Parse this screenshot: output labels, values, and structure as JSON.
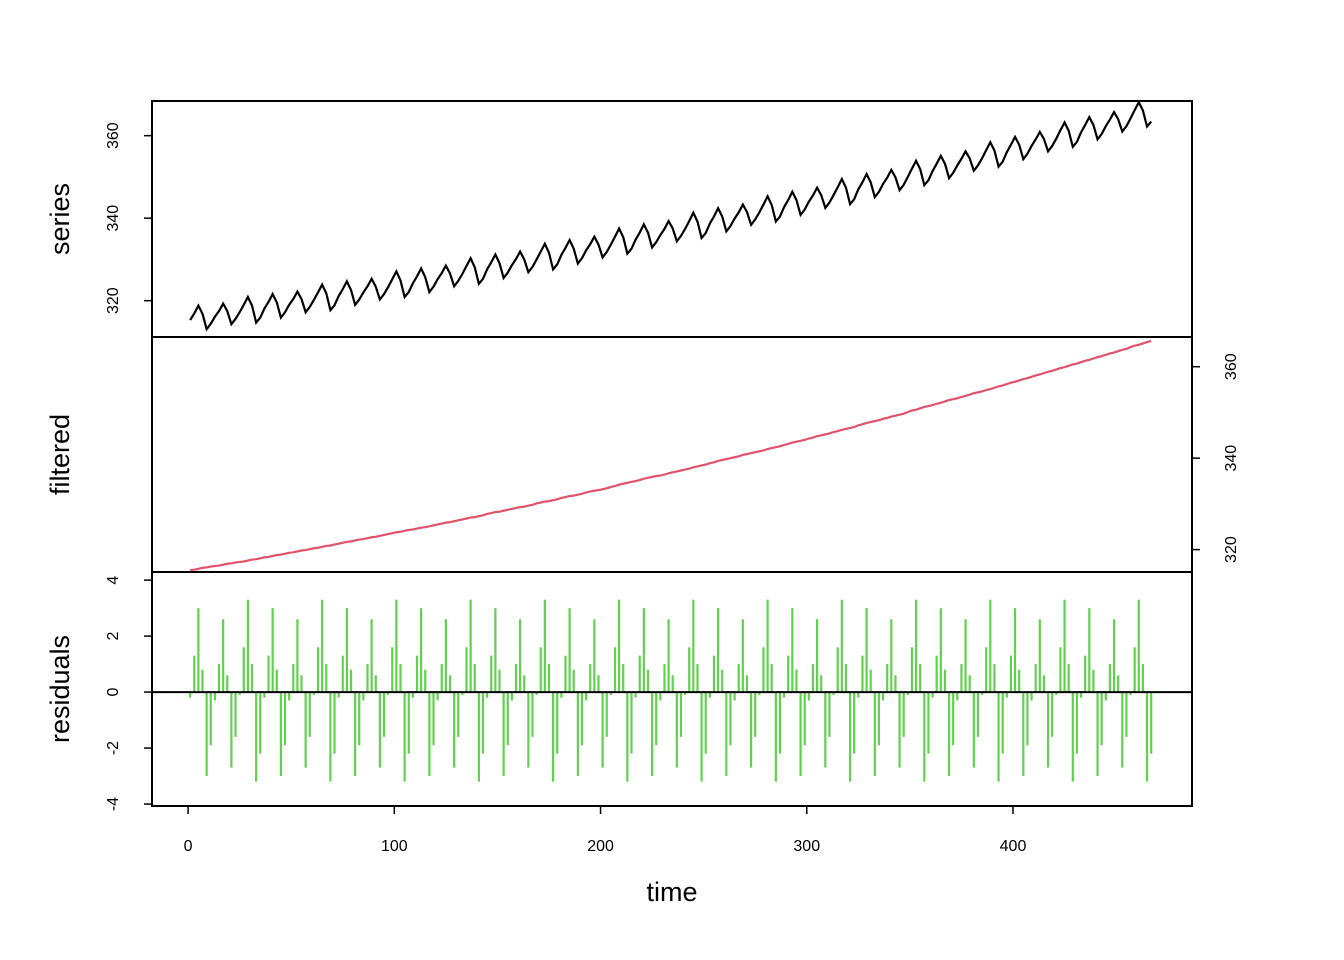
{
  "chart_data": [
    {
      "type": "line",
      "ylabel": "series",
      "color": "#000000",
      "yaxis": "left",
      "ylim": [
        311.2,
        368.4
      ],
      "yticks": [
        320,
        340,
        360
      ],
      "values": [
        315.3,
        316.9,
        318.8,
        316.8,
        313.1,
        314.4,
        316.1,
        317.5,
        319.3,
        317.5,
        314.3,
        315.6,
        317.2,
        319.0,
        320.9,
        318.8,
        314.7,
        315.9,
        318.1,
        319.7,
        321.6,
        319.6,
        315.9,
        317.2,
        319.0,
        320.4,
        322.2,
        320.4,
        317.2,
        318.5,
        320.2,
        322.0,
        323.9,
        321.8,
        317.7,
        318.9,
        321.1,
        322.8,
        324.7,
        322.6,
        319.0,
        320.3,
        322.0,
        323.5,
        325.3,
        323.4,
        320.3,
        321.6,
        323.3,
        325.2,
        327.1,
        324.9,
        320.9,
        322.1,
        324.2,
        325.9,
        327.8,
        325.7,
        322.1,
        323.4,
        325.2,
        326.7,
        328.5,
        326.6,
        323.5,
        324.8,
        326.5,
        328.4,
        330.3,
        328.1,
        324.1,
        325.3,
        327.6,
        329.3,
        331.2,
        329.1,
        325.5,
        326.8,
        328.6,
        330.1,
        331.9,
        330.0,
        326.9,
        328.2,
        330.0,
        331.9,
        333.8,
        331.6,
        327.6,
        328.8,
        331.1,
        332.8,
        334.7,
        332.6,
        329.0,
        330.3,
        332.2,
        333.7,
        335.5,
        333.6,
        330.5,
        331.8,
        333.6,
        335.5,
        337.5,
        335.4,
        331.4,
        332.6,
        334.8,
        336.5,
        338.5,
        336.5,
        332.9,
        334.2,
        335.9,
        337.4,
        339.3,
        337.5,
        334.4,
        335.7,
        337.4,
        339.3,
        341.3,
        339.2,
        335.2,
        336.4,
        338.7,
        340.4,
        342.4,
        340.4,
        336.8,
        338.1,
        339.9,
        341.4,
        343.3,
        341.5,
        338.4,
        339.7,
        341.4,
        343.3,
        345.3,
        343.2,
        339.2,
        340.4,
        342.7,
        344.4,
        346.4,
        344.4,
        340.8,
        342.1,
        344.0,
        345.5,
        347.4,
        345.6,
        342.5,
        343.8,
        345.6,
        347.5,
        349.5,
        347.4,
        343.4,
        344.6,
        347.0,
        348.7,
        350.7,
        348.7,
        345.1,
        346.4,
        348.3,
        349.8,
        351.7,
        349.9,
        346.8,
        348.1,
        350.0,
        352.0,
        353.9,
        351.9,
        348.0,
        349.2,
        351.4,
        353.2,
        355.1,
        353.2,
        349.7,
        351.0,
        352.8,
        354.4,
        356.2,
        354.5,
        351.5,
        352.8,
        354.5,
        356.5,
        358.4,
        356.4,
        352.5,
        353.7,
        356.0,
        357.8,
        359.7,
        357.8,
        354.3,
        355.6,
        357.5,
        359.1,
        360.9,
        359.2,
        356.2,
        357.5,
        359.3,
        361.3,
        363.2,
        361.2,
        357.3,
        358.5,
        360.8,
        362.6,
        364.5,
        362.6,
        359.1,
        360.4,
        362.3,
        363.9,
        365.7,
        364.0,
        361.0,
        362.3,
        364.2,
        366.2,
        368.1,
        366.1,
        362.2,
        363.4
      ]
    },
    {
      "type": "line",
      "ylabel": "filtered",
      "color": "#df536b",
      "yaxis": "right",
      "ylim": [
        315.1,
        366.5
      ],
      "yticks": [
        320,
        340,
        360
      ],
      "values": [
        315.5,
        315.6,
        315.8,
        316.0,
        316.1,
        316.3,
        316.4,
        316.5,
        316.7,
        316.9,
        317.0,
        317.2,
        317.3,
        317.4,
        317.6,
        317.8,
        317.9,
        318.1,
        318.3,
        318.4,
        318.6,
        318.8,
        318.9,
        319.1,
        319.3,
        319.4,
        319.6,
        319.8,
        319.9,
        320.1,
        320.3,
        320.4,
        320.6,
        320.8,
        320.9,
        321.1,
        321.3,
        321.5,
        321.7,
        321.8,
        322.0,
        322.2,
        322.3,
        322.5,
        322.7,
        322.8,
        323.0,
        323.2,
        323.4,
        323.6,
        323.8,
        323.9,
        324.1,
        324.3,
        324.4,
        324.6,
        324.8,
        324.9,
        325.1,
        325.3,
        325.5,
        325.7,
        325.9,
        326.0,
        326.2,
        326.4,
        326.6,
        326.8,
        327.0,
        327.1,
        327.3,
        327.5,
        327.8,
        328.0,
        328.2,
        328.3,
        328.5,
        328.7,
        328.9,
        329.1,
        329.3,
        329.4,
        329.6,
        329.8,
        330.1,
        330.3,
        330.5,
        330.6,
        330.8,
        331.0,
        331.3,
        331.5,
        331.7,
        331.8,
        332.0,
        332.2,
        332.5,
        332.7,
        332.9,
        333.0,
        333.2,
        333.4,
        333.7,
        333.9,
        334.2,
        334.4,
        334.6,
        334.8,
        335.0,
        335.2,
        335.5,
        335.7,
        335.9,
        336.1,
        336.2,
        336.4,
        336.7,
        336.9,
        337.1,
        337.3,
        337.5,
        337.7,
        338.0,
        338.2,
        338.4,
        338.6,
        338.9,
        339.1,
        339.4,
        339.6,
        339.8,
        340.0,
        340.2,
        340.4,
        340.7,
        340.9,
        341.1,
        341.3,
        341.5,
        341.7,
        342.0,
        342.2,
        342.4,
        342.6,
        342.9,
        343.1,
        343.4,
        343.6,
        343.8,
        344.0,
        344.3,
        344.5,
        344.8,
        345.0,
        345.2,
        345.4,
        345.7,
        345.9,
        346.2,
        346.4,
        346.6,
        346.8,
        347.2,
        347.4,
        347.7,
        347.9,
        348.1,
        348.3,
        348.6,
        348.8,
        349.1,
        349.3,
        349.5,
        349.7,
        350.1,
        350.4,
        350.6,
        350.9,
        351.2,
        351.4,
        351.6,
        351.9,
        352.1,
        352.4,
        352.7,
        352.9,
        353.1,
        353.4,
        353.6,
        353.9,
        354.2,
        354.4,
        354.6,
        354.9,
        355.1,
        355.4,
        355.7,
        355.9,
        356.2,
        356.5,
        356.7,
        357.0,
        357.3,
        357.5,
        357.8,
        358.1,
        358.3,
        358.6,
        358.9,
        359.1,
        359.4,
        359.7,
        359.9,
        360.2,
        360.5,
        360.7,
        361.0,
        361.3,
        361.5,
        361.8,
        362.1,
        362.3,
        362.6,
        362.9,
        363.1,
        363.4,
        363.7,
        363.9,
        364.3,
        364.6,
        364.8,
        365.1,
        365.4,
        365.6
      ]
    },
    {
      "type": "spike",
      "ylabel": "residuals",
      "color": "#61d04f",
      "yaxis": "left",
      "ylim": [
        -4.07,
        4.29
      ],
      "yticks": [
        -4,
        -2,
        0,
        2,
        4
      ],
      "reference_line": 0,
      "xlabel": "time",
      "xlim": [
        -17.5,
        486.8
      ],
      "xticks": [
        0,
        100,
        200,
        300,
        400
      ],
      "x": [
        1,
        3,
        5,
        7,
        9,
        11,
        13,
        15,
        17,
        19,
        21,
        23,
        25,
        27,
        29,
        31,
        33,
        35,
        37,
        39,
        41,
        43,
        45,
        47,
        49,
        51,
        53,
        55,
        57,
        59,
        61,
        63,
        65,
        67,
        69,
        71,
        73,
        75,
        77,
        79,
        81,
        83,
        85,
        87,
        89,
        91,
        93,
        95,
        97,
        99,
        101,
        103,
        105,
        107,
        109,
        111,
        113,
        115,
        117,
        119,
        121,
        123,
        125,
        127,
        129,
        131,
        133,
        135,
        137,
        139,
        141,
        143,
        145,
        147,
        149,
        151,
        153,
        155,
        157,
        159,
        161,
        163,
        165,
        167,
        169,
        171,
        173,
        175,
        177,
        179,
        181,
        183,
        185,
        187,
        189,
        191,
        193,
        195,
        197,
        199,
        201,
        203,
        205,
        207,
        209,
        211,
        213,
        215,
        217,
        219,
        221,
        223,
        225,
        227,
        229,
        231,
        233,
        235,
        237,
        239,
        241,
        243,
        245,
        247,
        249,
        251,
        253,
        255,
        257,
        259,
        261,
        263,
        265,
        267,
        269,
        271,
        273,
        275,
        277,
        279,
        281,
        283,
        285,
        287,
        289,
        291,
        293,
        295,
        297,
        299,
        301,
        303,
        305,
        307,
        309,
        311,
        313,
        315,
        317,
        319,
        321,
        323,
        325,
        327,
        329,
        331,
        333,
        335,
        337,
        339,
        341,
        343,
        345,
        347,
        349,
        351,
        353,
        355,
        357,
        359,
        361,
        363,
        365,
        367,
        369,
        371,
        373,
        375,
        377,
        379,
        381,
        383,
        385,
        387,
        389,
        391,
        393,
        395,
        397,
        399,
        401,
        403,
        405,
        407,
        409,
        411,
        413,
        415,
        417,
        419,
        421,
        423,
        425,
        427,
        429,
        431,
        433,
        435,
        437,
        439,
        441,
        443,
        445,
        447,
        449,
        451,
        453,
        455,
        457,
        459,
        461,
        463,
        465,
        467
      ],
      "values": [
        -0.2,
        1.3,
        3.0,
        0.8,
        -3.0,
        -1.9,
        -0.3,
        1.0,
        2.6,
        0.6,
        -2.7,
        -1.6,
        -0.1,
        1.6,
        3.3,
        1.0,
        -3.2,
        -2.2,
        -0.2,
        1.3,
        3.0,
        0.8,
        -3.0,
        -1.9,
        -0.3,
        1.0,
        2.6,
        0.6,
        -2.7,
        -1.6,
        -0.1,
        1.6,
        3.3,
        1.0,
        -3.2,
        -2.2,
        -0.2,
        1.3,
        3.0,
        0.8,
        -3.0,
        -1.9,
        -0.3,
        1.0,
        2.6,
        0.6,
        -2.7,
        -1.6,
        -0.1,
        1.6,
        3.3,
        1.0,
        -3.2,
        -2.2,
        -0.2,
        1.3,
        3.0,
        0.8,
        -3.0,
        -1.9,
        -0.3,
        1.0,
        2.6,
        0.6,
        -2.7,
        -1.6,
        -0.1,
        1.6,
        3.3,
        1.0,
        -3.2,
        -2.2,
        -0.2,
        1.3,
        3.0,
        0.8,
        -3.0,
        -1.9,
        -0.3,
        1.0,
        2.6,
        0.6,
        -2.7,
        -1.6,
        -0.1,
        1.6,
        3.3,
        1.0,
        -3.2,
        -2.2,
        -0.2,
        1.3,
        3.0,
        0.8,
        -3.0,
        -1.9,
        -0.3,
        1.0,
        2.6,
        0.6,
        -2.7,
        -1.6,
        -0.1,
        1.6,
        3.3,
        1.0,
        -3.2,
        -2.2,
        -0.2,
        1.3,
        3.0,
        0.8,
        -3.0,
        -1.9,
        -0.3,
        1.0,
        2.6,
        0.6,
        -2.7,
        -1.6,
        -0.1,
        1.6,
        3.3,
        1.0,
        -3.2,
        -2.2,
        -0.2,
        1.3,
        3.0,
        0.8,
        -3.0,
        -1.9,
        -0.3,
        1.0,
        2.6,
        0.6,
        -2.7,
        -1.6,
        -0.1,
        1.6,
        3.3,
        1.0,
        -3.2,
        -2.2,
        -0.2,
        1.3,
        3.0,
        0.8,
        -3.0,
        -1.9,
        -0.3,
        1.0,
        2.6,
        0.6,
        -2.7,
        -1.6,
        -0.1,
        1.6,
        3.3,
        1.0,
        -3.2,
        -2.2,
        -0.2,
        1.3,
        3.0,
        0.8,
        -3.0,
        -1.9,
        -0.3,
        1.0,
        2.6,
        0.6,
        -2.7,
        -1.6,
        -0.1,
        1.6,
        3.3,
        1.0,
        -3.2,
        -2.2,
        -0.2,
        1.3,
        3.0,
        0.8,
        -3.0,
        -1.9,
        -0.3,
        1.0,
        2.6,
        0.6,
        -2.7,
        -1.6,
        -0.1,
        1.6,
        3.3,
        1.0,
        -3.2,
        -2.2,
        -0.2,
        1.3,
        3.0,
        0.8,
        -3.0,
        -1.9,
        -0.3,
        1.0,
        2.6,
        0.6,
        -2.7,
        -1.6,
        -0.1,
        1.6,
        3.3,
        1.0,
        -3.2,
        -2.2,
        -0.2,
        1.3,
        3.0,
        0.8,
        -3.0,
        -1.9,
        -0.3,
        1.0,
        2.6,
        0.6,
        -2.7,
        -1.6,
        -0.1,
        1.6,
        3.3,
        1.0,
        -3.2,
        -2.2
      ]
    }
  ]
}
